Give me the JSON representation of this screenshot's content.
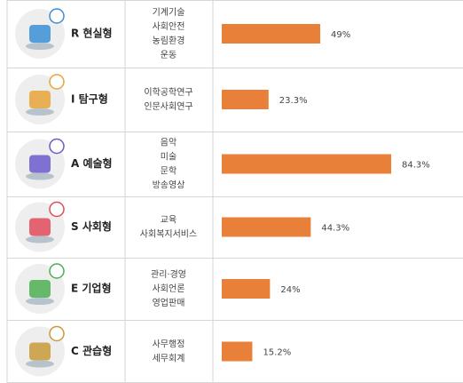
{
  "chart_data": {
    "type": "bar",
    "categories": [
      "R 현실형",
      "I 탐구형",
      "A 예술형",
      "S 사회형",
      "E 기업형",
      "C 관습형"
    ],
    "fields": [
      [
        "기계기술",
        "사회안전",
        "농림환경",
        "운동"
      ],
      [
        "이학공학연구",
        "인문사회연구"
      ],
      [
        "음악",
        "미술",
        "문학",
        "방송영상"
      ],
      [
        "교육",
        "사회복지서비스"
      ],
      [
        "관리·경영",
        "사회언론",
        "영업판매"
      ],
      [
        "사무행정",
        "세무회계"
      ]
    ],
    "values": [
      49,
      23.3,
      84.3,
      44.3,
      24,
      15.2
    ],
    "value_labels": [
      "49%",
      "23.3%",
      "84.3%",
      "44.3%",
      "24%",
      "15.2%"
    ],
    "color": "#e8803a"
  }
}
